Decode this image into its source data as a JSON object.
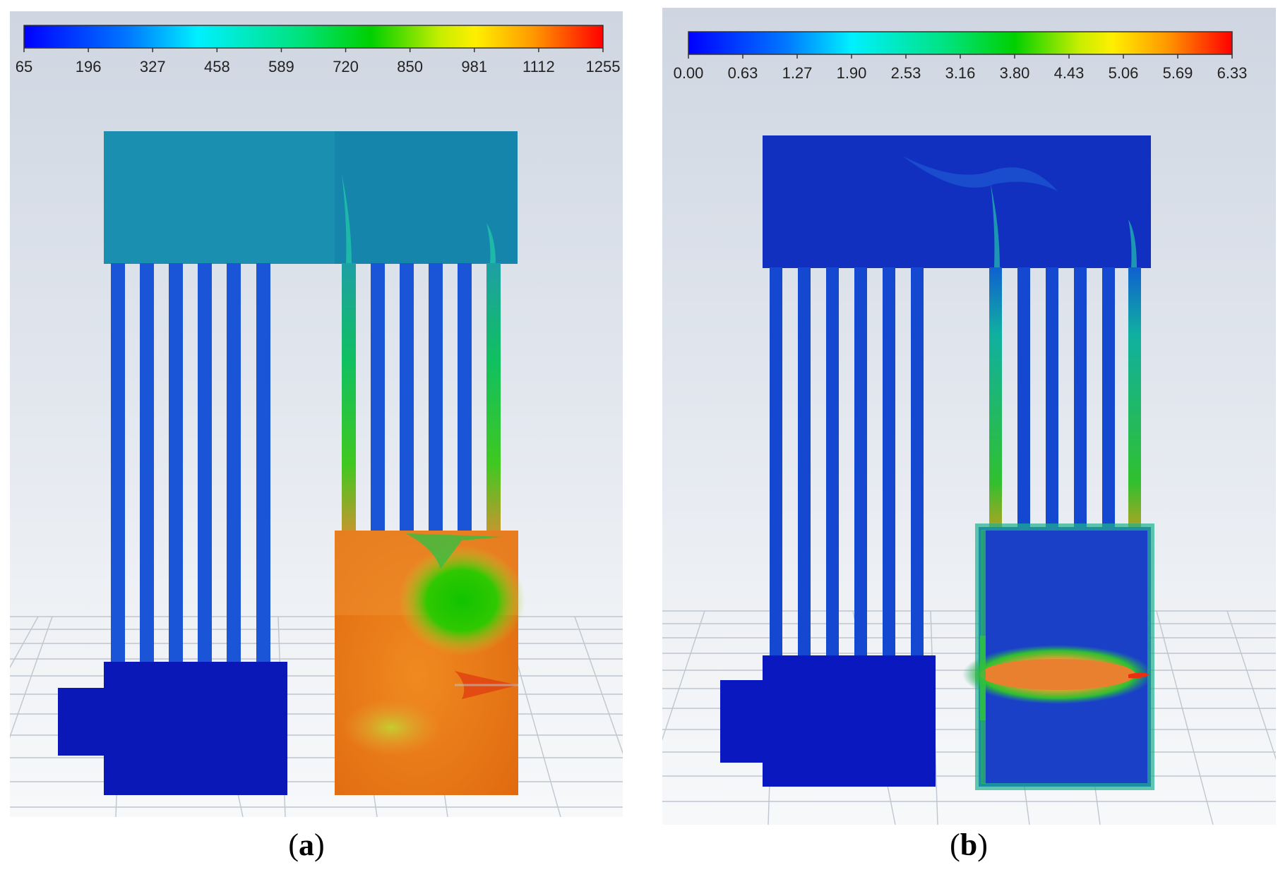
{
  "panel_a": {
    "label": "a",
    "colorbar_ticks": [
      "65",
      "196",
      "327",
      "458",
      "589",
      "720",
      "850",
      "981",
      "1112",
      "1255"
    ]
  },
  "panel_b": {
    "label": "b",
    "colorbar_ticks": [
      "0.00",
      "0.63",
      "1.27",
      "1.90",
      "2.53",
      "3.16",
      "3.80",
      "4.43",
      "5.06",
      "5.69",
      "6.33"
    ]
  },
  "colormap": [
    "#0000ff",
    "#0070ff",
    "#00e6ff",
    "#00d08a",
    "#00d000",
    "#c8e600",
    "#ffef00",
    "#ff9a00",
    "#ff3000",
    "#ff0000"
  ]
}
